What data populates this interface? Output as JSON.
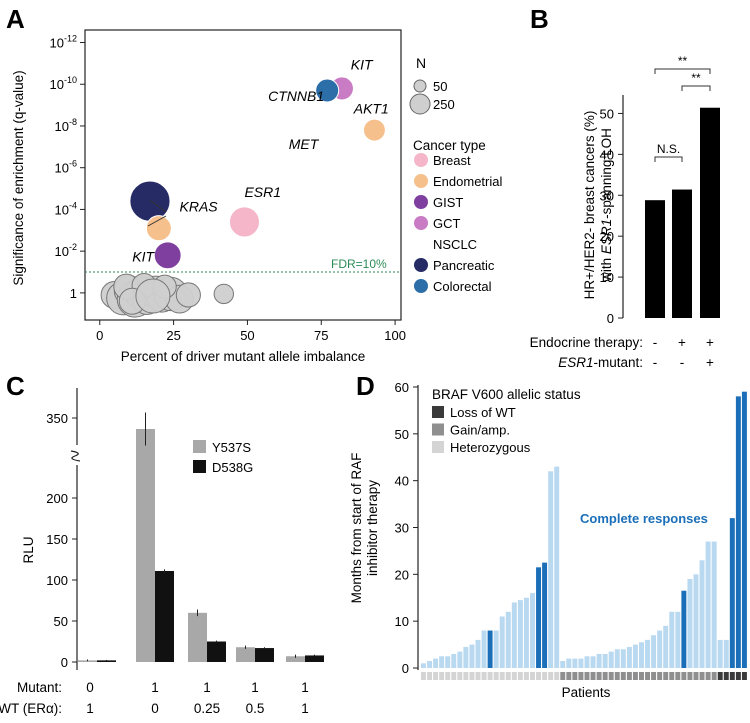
{
  "panels": {
    "a": "A",
    "b": "B",
    "c": "C",
    "d": "D"
  },
  "chart_data": [
    {
      "id": "A",
      "type": "scatter",
      "xlabel": "Percent of driver mutant allele imbalance",
      "ylabel": "Significance of enrichment (q-value)",
      "xlim": [
        -5,
        102
      ],
      "x_ticks": [
        0,
        25,
        50,
        75,
        100
      ],
      "y_log_exponent_range": [
        1.3,
        -12.6
      ],
      "y_ticks": [
        {
          "exp": -12,
          "label": "10",
          "sup": "-12"
        },
        {
          "exp": -10,
          "label": "10",
          "sup": "-10"
        },
        {
          "exp": -8,
          "label": "10",
          "sup": "-8"
        },
        {
          "exp": -6,
          "label": "10",
          "sup": "-6"
        },
        {
          "exp": -4,
          "label": "10",
          "sup": "-4"
        },
        {
          "exp": -2,
          "label": "10",
          "sup": "-2"
        },
        {
          "exp": 0,
          "label": "1",
          "sup": ""
        }
      ],
      "fdr_exp": -1.0,
      "fdr_label": "FDR=10%",
      "fdr_color": "#2e8b57",
      "size_legend": {
        "title": "N",
        "small": "50",
        "large": "250"
      },
      "type_legend_title": "Cancer type",
      "cancer_types": [
        {
          "name": "Breast",
          "color": "#f4b6c8"
        },
        {
          "name": "Endometrial",
          "color": "#f6c08d"
        },
        {
          "name": "GIST",
          "color": "#7e3f9f"
        },
        {
          "name": "GCT",
          "color": "#c97bc4"
        },
        {
          "name": "NSCLC",
          "color": "#ffffff"
        },
        {
          "name": "Pancreatic",
          "color": "#262b66"
        },
        {
          "name": "Colorectal",
          "color": "#2c6ea8"
        }
      ],
      "points": [
        {
          "gene": "KIT",
          "x": 82,
          "exp": -9.8,
          "n": 70,
          "color": "#c97bc4"
        },
        {
          "gene": "CTNNB1",
          "x": 77,
          "exp": -9.7,
          "n": 70,
          "color": "#2c6ea8"
        },
        {
          "gene": "AKT1",
          "x": 93,
          "exp": -7.8,
          "n": 60,
          "color": "#f6c08d"
        },
        {
          "gene": "ESR1",
          "x": 49,
          "exp": -3.4,
          "n": 150,
          "color": "#f4b6c8"
        },
        {
          "gene": "KRAS",
          "x": 17,
          "exp": -4.4,
          "n": 320,
          "color": "#262b66"
        },
        {
          "gene": "KRAS",
          "x": 20,
          "exp": -3.1,
          "n": 90,
          "color": "#f6c08d"
        },
        {
          "gene": "KIT",
          "x": 23,
          "exp": -1.8,
          "n": 110,
          "color": "#7e3f9f"
        }
      ],
      "gray_points": [
        {
          "x": 5,
          "exp": 0.1,
          "n": 110
        },
        {
          "x": 8,
          "exp": 0.25,
          "n": 200
        },
        {
          "x": 10,
          "exp": -0.1,
          "n": 150
        },
        {
          "x": 12,
          "exp": 0.3,
          "n": 240
        },
        {
          "x": 14,
          "exp": 0.0,
          "n": 180
        },
        {
          "x": 16,
          "exp": 0.35,
          "n": 130
        },
        {
          "x": 19,
          "exp": -0.05,
          "n": 170
        },
        {
          "x": 21,
          "exp": 0.2,
          "n": 150
        },
        {
          "x": 24,
          "exp": 0.05,
          "n": 200
        },
        {
          "x": 27,
          "exp": 0.3,
          "n": 120
        },
        {
          "x": 9,
          "exp": -0.3,
          "n": 90
        },
        {
          "x": 15,
          "exp": -0.35,
          "n": 80
        },
        {
          "x": 22,
          "exp": -0.3,
          "n": 70
        },
        {
          "x": 30,
          "exp": 0.1,
          "n": 80
        },
        {
          "x": 11,
          "exp": 0.4,
          "n": 100
        },
        {
          "x": 18,
          "exp": 0.15,
          "n": 210
        },
        {
          "x": 42,
          "exp": 0.05,
          "n": 40
        }
      ],
      "labels": [
        {
          "text": "KIT",
          "gene_x": 85,
          "gene_exp": -10.7
        },
        {
          "text": "CTNNB1",
          "gene_x": 57,
          "gene_exp": -9.2
        },
        {
          "text": "AKT1",
          "gene_x": 86,
          "gene_exp": -8.6
        },
        {
          "text": "MET",
          "gene_x": 64,
          "gene_exp": -6.9
        },
        {
          "text": "ESR1",
          "gene_x": 49,
          "gene_exp": -4.6
        },
        {
          "text": "KRAS",
          "gene_x": 27,
          "gene_exp": -3.9
        },
        {
          "text": "KIT",
          "gene_x": 11,
          "gene_exp": -1.5
        }
      ]
    },
    {
      "id": "B",
      "type": "bar",
      "ylabel_line1": "HR+/HER2- breast cancers (%)",
      "ylabel_line2_prefix": "with ",
      "ylabel_line2_gene": "ESR1",
      "ylabel_line2_suffix": "-spanning LOH",
      "ylim": [
        0,
        55
      ],
      "y_ticks": [
        0,
        10,
        20,
        30,
        40,
        50
      ],
      "values": [
        28.8,
        31.4,
        51.4
      ],
      "bar_color": "#000000",
      "brackets": [
        {
          "from": 0,
          "to": 1,
          "label": "N.S."
        },
        {
          "from": 1,
          "to": 2,
          "label": "**"
        },
        {
          "from": 0,
          "to": 2,
          "label": "**"
        }
      ],
      "rows": [
        {
          "label": "Endocrine therapy:",
          "italic_part": "",
          "values": [
            "-",
            "+",
            "+"
          ]
        },
        {
          "label": "-mutant:",
          "italic_part": "ESR1",
          "values": [
            "-",
            "-",
            "+"
          ]
        }
      ]
    },
    {
      "id": "C",
      "type": "bar",
      "ylabel": "RLU",
      "y_ticks": [
        0,
        50,
        100,
        150,
        200,
        350
      ],
      "axis_break_between": [
        200,
        350
      ],
      "series": [
        {
          "name": "Y537S",
          "color": "#a8a8a8",
          "values": [
            2,
            340,
            60,
            18,
            7
          ],
          "errors": [
            1,
            15,
            4,
            2,
            2
          ]
        },
        {
          "name": "D538G",
          "color": "#111111",
          "values": [
            2,
            111,
            25,
            17,
            8
          ],
          "errors": [
            0.5,
            2,
            1,
            1,
            1
          ]
        }
      ],
      "rows": [
        {
          "label": "Mutant:",
          "values": [
            "0",
            "1",
            "1",
            "1",
            "1"
          ]
        },
        {
          "label": "WT (ERα):",
          "values": [
            "1",
            "0",
            "0.25",
            "0.5",
            "1"
          ]
        }
      ]
    },
    {
      "id": "D",
      "type": "bar",
      "ylabel_line1": "Months from start of RAF",
      "ylabel_line2": "inhibitor therapy",
      "xlabel": "Patients",
      "ylim": [
        0,
        60
      ],
      "y_ticks": [
        0,
        10,
        20,
        30,
        40,
        50,
        60
      ],
      "legend_title": "BRAF V600 allelic status",
      "legend_items": [
        {
          "name": "Loss of WT",
          "color": "#3a3a3a"
        },
        {
          "name": "Gain/amp.",
          "color": "#8f8f8f"
        },
        {
          "name": "Heterozygous",
          "color": "#d4d4d4"
        }
      ],
      "annotation": "Complete responses",
      "annotation_color": "#1b6fb8",
      "bar_light": "#b9d9f1",
      "bar_dark": "#1b6fb8",
      "values": [
        1,
        1.5,
        2,
        2.5,
        2.5,
        3,
        3.5,
        4.5,
        5,
        6,
        8,
        8,
        8,
        11,
        12,
        14,
        14.5,
        15,
        16,
        21.5,
        22.5,
        42,
        43,
        1.5,
        2,
        2,
        2,
        2.5,
        2.5,
        3,
        3,
        3.5,
        4,
        4,
        4.5,
        5,
        5.5,
        6,
        7,
        8,
        9,
        12,
        12,
        16.5,
        19,
        20,
        23,
        27,
        27,
        6,
        6,
        32,
        58,
        59
      ],
      "highlight": [
        0,
        0,
        0,
        0,
        0,
        0,
        0,
        0,
        0,
        0,
        0,
        1,
        0,
        0,
        0,
        0,
        0,
        0,
        0,
        1,
        1,
        0,
        0,
        0,
        0,
        0,
        0,
        0,
        0,
        0,
        0,
        0,
        0,
        0,
        0,
        0,
        0,
        0,
        0,
        0,
        0,
        0,
        0,
        1,
        0,
        0,
        0,
        0,
        0,
        0,
        0,
        1,
        1,
        1
      ],
      "status": [
        "H",
        "H",
        "H",
        "H",
        "H",
        "H",
        "H",
        "H",
        "H",
        "H",
        "H",
        "H",
        "H",
        "H",
        "H",
        "H",
        "H",
        "H",
        "H",
        "H",
        "H",
        "H",
        "H",
        "G",
        "G",
        "G",
        "G",
        "G",
        "G",
        "G",
        "G",
        "G",
        "G",
        "G",
        "G",
        "G",
        "G",
        "G",
        "G",
        "G",
        "G",
        "G",
        "G",
        "G",
        "G",
        "G",
        "G",
        "G",
        "G",
        "L",
        "L",
        "L",
        "L",
        "L"
      ]
    }
  ]
}
